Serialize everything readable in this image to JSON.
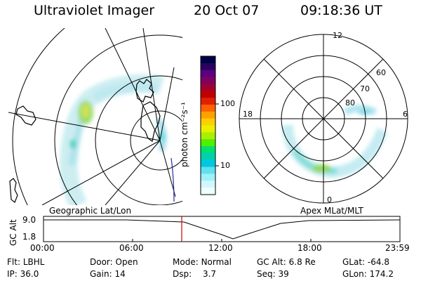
{
  "header": {
    "title": "Ultraviolet Imager",
    "date": "20 Oct 07",
    "time": "09:18:36 UT"
  },
  "left_panel": {
    "caption": "Geographic Lat/Lon"
  },
  "right_panel": {
    "caption": "Apex MLat/MLT",
    "mlt_labels": [
      "12",
      "18",
      "6",
      "0"
    ],
    "lat_labels": [
      "60",
      "70",
      "80"
    ]
  },
  "colorbar": {
    "unit_label": "photon cm⁻²s⁻¹",
    "tick_labels": [
      "100",
      "10"
    ],
    "colors": [
      "#000044",
      "#2a0060",
      "#5a0080",
      "#800060",
      "#a00030",
      "#c00000",
      "#e02000",
      "#ff6000",
      "#ffa000",
      "#ffd000",
      "#e8f000",
      "#a8f000",
      "#50f000",
      "#00e070",
      "#00d0b0",
      "#00c8e0",
      "#60e0f0",
      "#a0f0f8",
      "#d0f8fc",
      "#f0ffff"
    ]
  },
  "altitude_plot": {
    "ylabel": "GC Alt",
    "y_ticks": [
      "9.0",
      "1.8"
    ],
    "x_ticks": [
      "00:00",
      "06:00",
      "12:00",
      "18:00",
      "23:59"
    ],
    "marker_color": "#cc0000"
  },
  "status": {
    "row1": [
      {
        "label": "Flt:",
        "value": "LBHL"
      },
      {
        "label": "Door:",
        "value": "Open"
      },
      {
        "label": "Mode:",
        "value": "Normal"
      },
      {
        "label": "GC Alt:",
        "value": "6.8 Re"
      },
      {
        "label": "GLat:",
        "value": "-64.8"
      }
    ],
    "row2": [
      {
        "label": "IP:",
        "value": "36.0"
      },
      {
        "label": "Gain:",
        "value": "14"
      },
      {
        "label": "Dsp:",
        "value": "3.7"
      },
      {
        "label": "Seq:",
        "value": "39"
      },
      {
        "label": "GLon:",
        "value": "174.2"
      }
    ]
  }
}
